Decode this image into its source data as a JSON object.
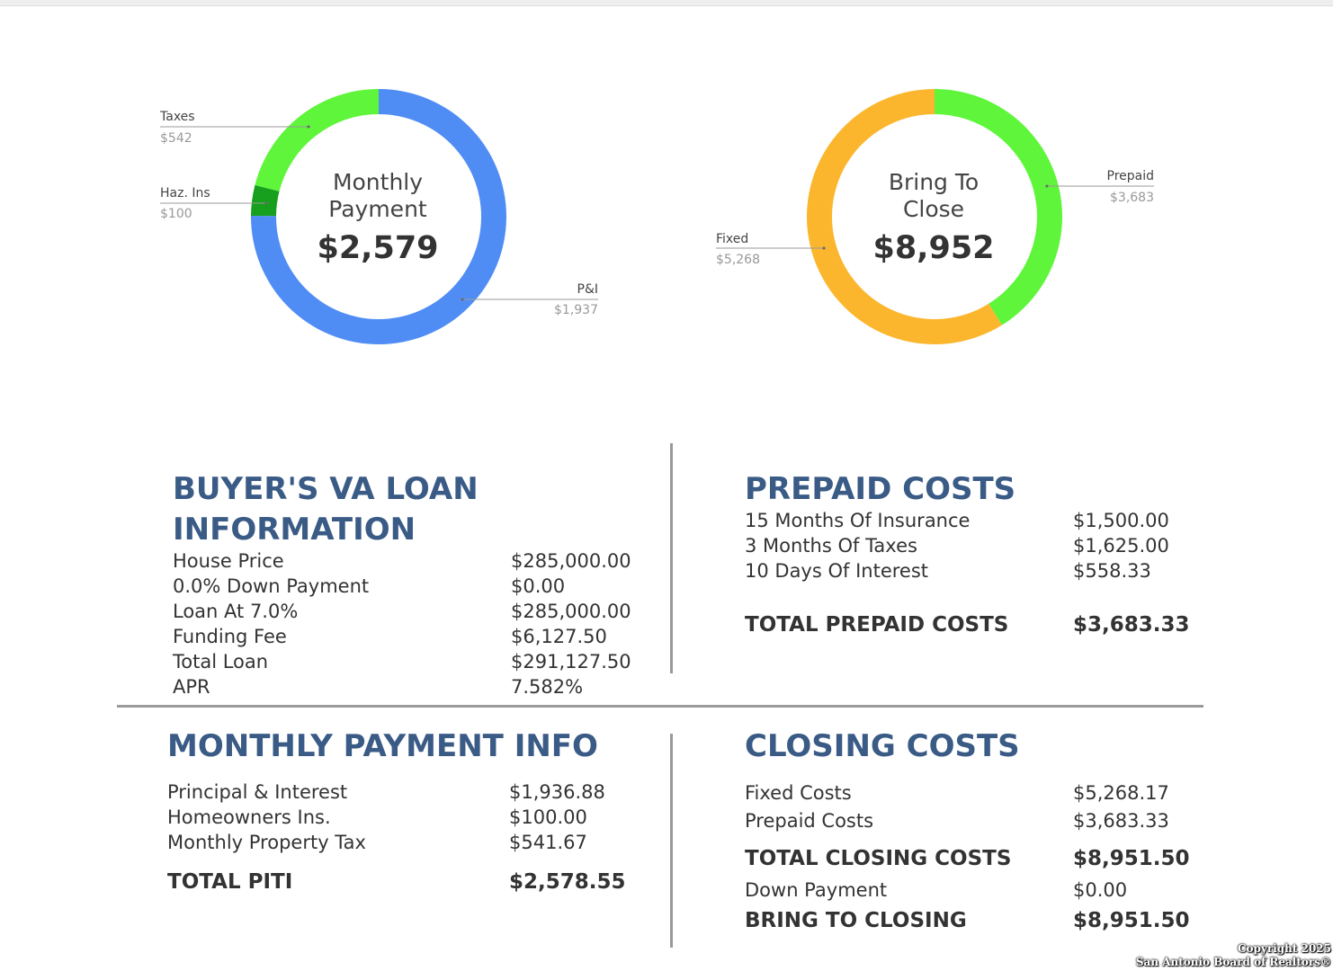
{
  "chart_data": [
    {
      "type": "pie",
      "title": "Monthly Payment",
      "total_label": "$2,579",
      "slices": [
        {
          "name": "P&I",
          "value": 1937,
          "value_label": "$1,937",
          "color": "#4f8df5"
        },
        {
          "name": "Haz. Ins",
          "value": 100,
          "value_label": "$100",
          "color": "#17a01d"
        },
        {
          "name": "Taxes",
          "value": 542,
          "value_label": "$542",
          "color": "#5ef53a"
        }
      ]
    },
    {
      "type": "pie",
      "title": "Bring To Close",
      "total_label": "$8,952",
      "slices": [
        {
          "name": "Prepaid",
          "value": 3683,
          "value_label": "$3,683",
          "color": "#5ef53a"
        },
        {
          "name": "Fixed",
          "value": 5268,
          "value_label": "$5,268",
          "color": "#fbb62d"
        }
      ]
    }
  ],
  "loan_info": {
    "title": "BUYER'S VA LOAN INFORMATION",
    "rows": [
      {
        "label": "House Price",
        "value": "$285,000.00"
      },
      {
        "label": "0.0% Down Payment",
        "value": "$0.00"
      },
      {
        "label": "Loan At 7.0%",
        "value": "$285,000.00"
      },
      {
        "label": "Funding Fee",
        "value": "$6,127.50"
      },
      {
        "label": "Total Loan",
        "value": "$291,127.50"
      },
      {
        "label": "APR",
        "value": "7.582%"
      }
    ]
  },
  "prepaid_costs": {
    "title": "PREPAID COSTS",
    "rows": [
      {
        "label": "15 Months Of Insurance",
        "value": "$1,500.00"
      },
      {
        "label": "3 Months Of Taxes",
        "value": "$1,625.00"
      },
      {
        "label": "10 Days Of Interest",
        "value": "$558.33"
      }
    ],
    "total_label": "TOTAL PREPAID COSTS",
    "total_value": "$3,683.33"
  },
  "monthly_payment": {
    "title": "MONTHLY PAYMENT INFO",
    "rows": [
      {
        "label": "Principal & Interest",
        "value": "$1,936.88"
      },
      {
        "label": "Homeowners Ins.",
        "value": "$100.00"
      },
      {
        "label": "Monthly Property Tax",
        "value": "$541.67"
      }
    ],
    "total_label": "TOTAL PITI",
    "total_value": "$2,578.55"
  },
  "closing_costs": {
    "title": "CLOSING COSTS",
    "fixed_label": "Fixed Costs",
    "fixed_value": "$5,268.17",
    "prepaid_label": "Prepaid Costs",
    "prepaid_value": "$3,683.33",
    "total_label": "TOTAL CLOSING COSTS",
    "total_value": "$8,951.50",
    "down_label": "Down Payment",
    "down_value": "$0.00",
    "bring_label": "BRING TO CLOSING",
    "bring_value": "$8,951.50"
  },
  "copyright": {
    "line1": "Copyright 2025",
    "line2": "San Antonio Board of Realtors®"
  }
}
